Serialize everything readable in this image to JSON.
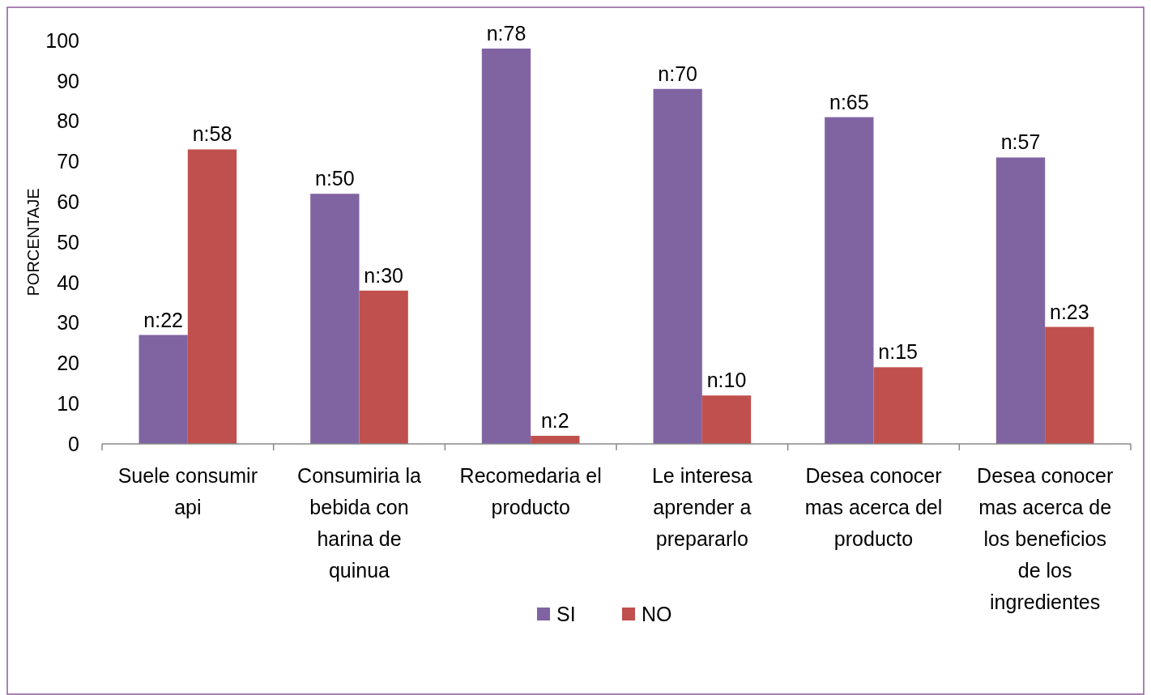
{
  "chart_data": {
    "type": "bar",
    "ylabel": "PORCENTAJE",
    "categories": [
      "Suele consumir api",
      "Consumiria la bebida con harina de quinua",
      "Recomedaria el producto",
      "Le interesa aprender a prepararlo",
      "Desea conocer mas acerca del producto",
      "Desea conocer mas acerca de los beneficios de los ingredientes"
    ],
    "series": [
      {
        "name": "SI",
        "color": "#8064a2",
        "values": [
          27,
          62,
          98,
          88,
          81,
          71
        ]
      },
      {
        "name": "NO",
        "color": "#c0504d",
        "values": [
          73,
          38,
          2,
          12,
          19,
          29
        ]
      }
    ],
    "annotations": [
      {
        "text": "n:22",
        "x": "Suele consumir api",
        "y": 27
      },
      {
        "text": "n:58",
        "x": "Suele consumir api",
        "y": 73
      },
      {
        "text": "n:50",
        "x": "Consumiria la bebida con harina de quinua",
        "y": 62
      },
      {
        "text": "n:30",
        "x": "Consumiria la bebida con harina de quinua",
        "y": 38
      },
      {
        "text": "n:78",
        "x": "Recomedaria el producto",
        "y": 98
      },
      {
        "text": "n:2",
        "x": "Recomedaria el producto",
        "y": 2
      },
      {
        "text": "n:70",
        "x": "Le interesa aprender a prepararlo",
        "y": 88
      },
      {
        "text": "n:10",
        "x": "Le interesa aprender a prepararlo",
        "y": 12
      },
      {
        "text": "n:65",
        "x": "Desea conocer mas acerca del producto",
        "y": 81
      },
      {
        "text": "n:15",
        "x": "Desea conocer mas acerca del producto",
        "y": 19
      },
      {
        "text": "n:57",
        "x": "Desea conocer mas acerca de los beneficios de los ingredientes",
        "y": 71
      },
      {
        "text": "n:23",
        "x": "Desea conocer mas acerca de los beneficios de los ingredientes",
        "y": 29
      }
    ],
    "ylim": [
      0,
      100
    ],
    "yticks": [
      0,
      10,
      20,
      30,
      40,
      50,
      60,
      70,
      80,
      90,
      100
    ],
    "grid": false,
    "legend": "bottom"
  }
}
